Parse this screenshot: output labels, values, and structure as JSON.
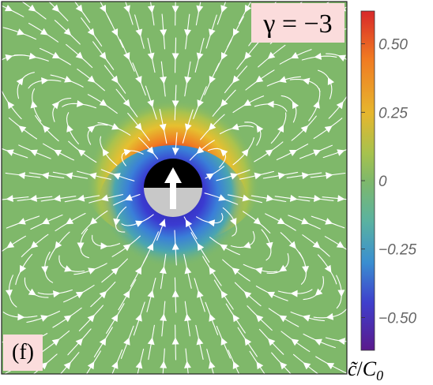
{
  "panel": {
    "tag": "(f)",
    "gamma_label": "γ = −3"
  },
  "colorbar": {
    "ticks": [
      "0.50",
      "0.25",
      "0",
      "−0.25",
      "−0.50"
    ],
    "tick_values": [
      0.5,
      0.25,
      0,
      -0.25,
      -0.5
    ],
    "range": [
      -0.62,
      0.62
    ],
    "label_c": "c̃",
    "label_slash": "/",
    "label_c0": "C",
    "label_c0_sub": "0",
    "colors": [
      "#5a1a8c",
      "#3f3fcc",
      "#3a8fd0",
      "#5ab2a0",
      "#7fb86a",
      "#a6c24e",
      "#e6b62e",
      "#f07a22",
      "#d8282a"
    ]
  },
  "field": {
    "background": "#7fb86a",
    "particle_upper": "#000000",
    "particle_lower": "#c8c8c8",
    "arrow": "#ffffff",
    "stream": "#ffffff"
  }
}
